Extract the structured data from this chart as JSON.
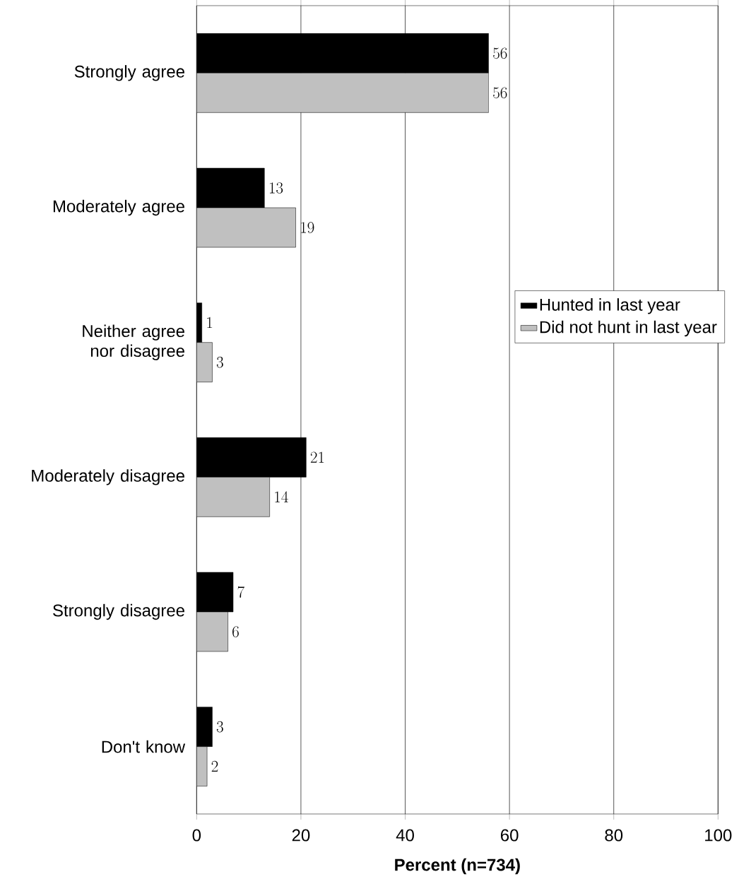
{
  "chart_data": {
    "type": "bar",
    "orientation": "horizontal",
    "xlabel": "Percent (n=734)",
    "categories": [
      "Strongly agree",
      "Moderately agree",
      "Neither agree nor disagree",
      "Moderately disagree",
      "Strongly disagree",
      "Don't know"
    ],
    "series": [
      {
        "name": "Hunted in last year",
        "color": "#000000",
        "values": [
          56,
          13,
          1,
          21,
          7,
          3
        ]
      },
      {
        "name": "Did not hunt in last year",
        "color": "#c0c0c0",
        "values": [
          56,
          19,
          3,
          14,
          6,
          2
        ]
      }
    ],
    "xlim": [
      0,
      100
    ],
    "xticks": [
      0,
      20,
      40,
      60,
      80,
      100
    ],
    "grid": "x",
    "legend": "right",
    "data_labels": true
  }
}
